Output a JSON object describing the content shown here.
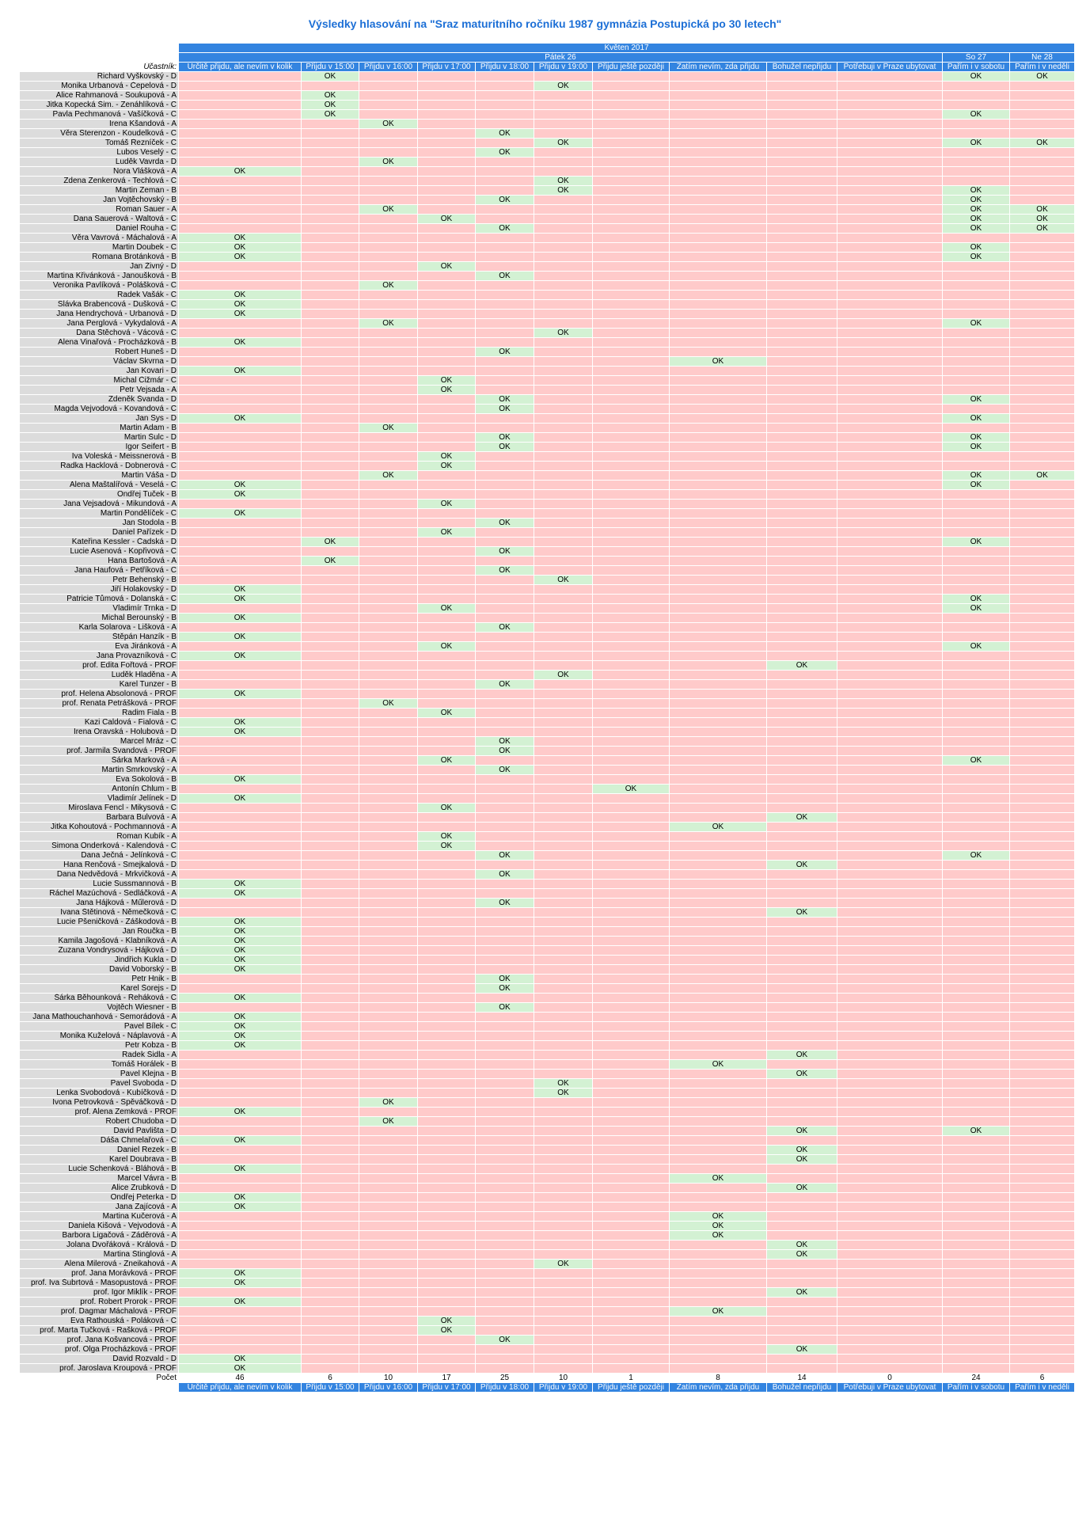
{
  "title": "Výsledky hlasování na \"Sraz maturitního ročníku 1987 gymnázia Postupická po 30 letech\"",
  "month": "Květen 2017",
  "days": [
    {
      "label": "Pátek 26",
      "span": 10
    },
    {
      "label": "So 27",
      "span": 1
    },
    {
      "label": "Ne 28",
      "span": 1
    }
  ],
  "participant_label": "Účastník:",
  "count_label": "Počet",
  "ok_label": "OK",
  "colors": {
    "header": "#3384e0",
    "no": "#ffcaca",
    "yes": "#d3f1d3",
    "name": "#dcdcdc",
    "title": "#1c6fd6"
  },
  "columns": [
    "Určitě přijdu, ale nevím v kolik",
    "Přijdu v 15:00",
    "Přijdu v 16:00",
    "Přijdu v 17:00",
    "Přijdu v 18:00",
    "Přijdu v 19:00",
    "Přijdu ještě později",
    "Zatím nevím, zda přijdu",
    "Bohužel nepřijdu",
    "Potřebuji v Praze ubytovat",
    "Pařím i v sobotu",
    "Pařím i v neděli"
  ],
  "counts": [
    "46",
    "6",
    "10",
    "17",
    "25",
    "10",
    "1",
    "8",
    "14",
    "0",
    "24",
    "6"
  ],
  "rows": [
    {
      "name": "Richard Vyškovský - D",
      "ok": [
        1,
        10,
        11
      ]
    },
    {
      "name": "Monika Urbanová - Čepelová - D",
      "ok": [
        5
      ]
    },
    {
      "name": "Alice Rahmanová - Soukupová - A",
      "ok": [
        1
      ]
    },
    {
      "name": "Jitka Kopecká Šim. - Zenáhlíková - C",
      "ok": [
        1
      ]
    },
    {
      "name": "Pavla Pechmanová - Vašíčková - C",
      "ok": [
        1,
        10
      ]
    },
    {
      "name": "Irena Kšandová - A",
      "ok": [
        2
      ]
    },
    {
      "name": "Věra Sterenzon - Koudelková - C",
      "ok": [
        4
      ]
    },
    {
      "name": "Tomáš Řezníček - C",
      "ok": [
        5,
        10,
        11
      ]
    },
    {
      "name": "Lubos Veselý - C",
      "ok": [
        4
      ]
    },
    {
      "name": "Luděk Vavrda - D",
      "ok": [
        2
      ]
    },
    {
      "name": "Nora Vlášková - A",
      "ok": [
        0
      ]
    },
    {
      "name": "Zdena Zenkerová - Techlová - C",
      "ok": [
        5
      ]
    },
    {
      "name": "Martin Zeman - B",
      "ok": [
        5,
        10
      ]
    },
    {
      "name": "Jan Vojtěchovský - B",
      "ok": [
        4,
        10
      ]
    },
    {
      "name": "Roman Sauer - A",
      "ok": [
        2,
        10,
        11
      ]
    },
    {
      "name": "Dana Sauerová - Waltová - C",
      "ok": [
        3,
        10,
        11
      ]
    },
    {
      "name": "Daniel Rouha - C",
      "ok": [
        4,
        10,
        11
      ]
    },
    {
      "name": "Věra Vavrová - Máchalová - A",
      "ok": [
        0
      ]
    },
    {
      "name": "Martin Doubek - C",
      "ok": [
        0,
        10
      ]
    },
    {
      "name": "Romana Brotánková - B",
      "ok": [
        0,
        10
      ]
    },
    {
      "name": "Jan Živný - D",
      "ok": [
        3
      ]
    },
    {
      "name": "Martina Křivánková - Janoušková - B",
      "ok": [
        4
      ]
    },
    {
      "name": "Veronika Pavlíková - Polášková - C",
      "ok": [
        2
      ]
    },
    {
      "name": "Radek Vašák - C",
      "ok": [
        0
      ]
    },
    {
      "name": "Slávka Brabencová - Dušková - C",
      "ok": [
        0
      ]
    },
    {
      "name": "Jana Hendrychová - Urbanová - D",
      "ok": [
        0
      ]
    },
    {
      "name": "Jana Perglová - Vykydalová - A",
      "ok": [
        2,
        10
      ]
    },
    {
      "name": "Dana Štěchová - Vácová - C",
      "ok": [
        5
      ]
    },
    {
      "name": "Alena Vinařová  - Procházková - B",
      "ok": [
        0
      ]
    },
    {
      "name": "Robert Huneš - D",
      "ok": [
        4
      ]
    },
    {
      "name": "Václav Skvrna - D",
      "ok": [
        7
      ]
    },
    {
      "name": "Jan Kovari - D",
      "ok": [
        0
      ]
    },
    {
      "name": "Michal Čižmár - C",
      "ok": [
        3
      ]
    },
    {
      "name": "Petr Vejsada - A",
      "ok": [
        3
      ]
    },
    {
      "name": "Zdeněk Švanda - D",
      "ok": [
        4,
        10
      ]
    },
    {
      "name": "Magda Vejvodová - Kovandová - C",
      "ok": [
        4
      ]
    },
    {
      "name": "Jan Sys - D",
      "ok": [
        0,
        10
      ]
    },
    {
      "name": "Martin Adam - B",
      "ok": [
        2
      ]
    },
    {
      "name": "Martin Šulc - D",
      "ok": [
        4,
        10
      ]
    },
    {
      "name": "Igor Seifert - B",
      "ok": [
        4,
        10
      ]
    },
    {
      "name": "Iva Voleská - Meissnerová - B",
      "ok": [
        3
      ]
    },
    {
      "name": "Radka Hacklová - Dobnerová - C",
      "ok": [
        3
      ]
    },
    {
      "name": "Martin Váša - D",
      "ok": [
        2,
        10,
        11
      ]
    },
    {
      "name": "Alena Maštalířová - Veselá - C",
      "ok": [
        0,
        10
      ]
    },
    {
      "name": "Ondřej Tuček - B",
      "ok": [
        0
      ]
    },
    {
      "name": "Jana Vejsadová - Mikundová - A",
      "ok": [
        3
      ]
    },
    {
      "name": "Martin Pondělíček - C",
      "ok": [
        0
      ]
    },
    {
      "name": "Jan Stodola - B",
      "ok": [
        4
      ]
    },
    {
      "name": "Daniel Pařízek - D",
      "ok": [
        3
      ]
    },
    {
      "name": "Kateřina Kessler - Čadská - D",
      "ok": [
        1,
        10
      ]
    },
    {
      "name": "Lucie Asenová - Kopřivová - C",
      "ok": [
        4
      ]
    },
    {
      "name": "Hana Bartošová - A",
      "ok": [
        1
      ]
    },
    {
      "name": "Jana Haufová - Petříková - C",
      "ok": [
        4
      ]
    },
    {
      "name": "Petr Behenský - B",
      "ok": [
        5
      ]
    },
    {
      "name": "Jiří Holakovský - D",
      "ok": [
        0
      ]
    },
    {
      "name": "Patricie Tůmová - Dolanská - C",
      "ok": [
        0,
        10
      ]
    },
    {
      "name": "Vladimír Trnka - D",
      "ok": [
        3,
        10
      ]
    },
    {
      "name": "Michal Berounský - B",
      "ok": [
        0
      ]
    },
    {
      "name": "Karla Solarova - Lišková - A",
      "ok": [
        4
      ]
    },
    {
      "name": "Štěpán Hanzík - B",
      "ok": [
        0
      ]
    },
    {
      "name": "Eva Jiránková - A",
      "ok": [
        3,
        10
      ]
    },
    {
      "name": "Jana Provazníková - C",
      "ok": [
        0
      ]
    },
    {
      "name": "prof. Edita Fořtová - PROF",
      "ok": [
        8
      ]
    },
    {
      "name": "Luděk Hladěna - A",
      "ok": [
        5
      ]
    },
    {
      "name": "Karel Tunzer - B",
      "ok": [
        4
      ]
    },
    {
      "name": "prof. Helena Absolonová - PROF",
      "ok": [
        0
      ]
    },
    {
      "name": "prof. Renata Petrášková - PROF",
      "ok": [
        2
      ]
    },
    {
      "name": "Radim Fiala - B",
      "ok": [
        3
      ]
    },
    {
      "name": "Kazi Caldová - Fialová - C",
      "ok": [
        0
      ]
    },
    {
      "name": "Irena Oravská - Holubová - D",
      "ok": [
        0
      ]
    },
    {
      "name": "Marcel Mráz - C",
      "ok": [
        4
      ]
    },
    {
      "name": "prof. Jarmila Švandová - PROF",
      "ok": [
        4
      ]
    },
    {
      "name": "Šárka Marková - A",
      "ok": [
        3,
        10
      ]
    },
    {
      "name": "Martin Smrkovský - A",
      "ok": [
        4
      ]
    },
    {
      "name": "Eva Sokolová - B",
      "ok": [
        0
      ]
    },
    {
      "name": "Antonín Chlum - B",
      "ok": [
        6
      ]
    },
    {
      "name": "Vladimír Jelínek - D",
      "ok": [
        0
      ]
    },
    {
      "name": "Miroslava Fencl - Mikysová - C",
      "ok": [
        3
      ]
    },
    {
      "name": "Barbara Bulvová - A",
      "ok": [
        8
      ]
    },
    {
      "name": "Jitka Kohoutová - Pochmannová - A",
      "ok": [
        7
      ]
    },
    {
      "name": "Roman Kubík - A",
      "ok": [
        3
      ]
    },
    {
      "name": "Simona Onderková - Kalendová - C",
      "ok": [
        3
      ]
    },
    {
      "name": "Dana Ječná - Jelínková - C",
      "ok": [
        4,
        10
      ]
    },
    {
      "name": "Hana Renčová - Smejkalová - D",
      "ok": [
        8
      ]
    },
    {
      "name": "Dana Nedvědová - Mrkvičková - A",
      "ok": [
        4
      ]
    },
    {
      "name": "Lucie Sussmannová - B",
      "ok": [
        0
      ]
    },
    {
      "name": "Ráchel Mazúchová - Sedláčková - A",
      "ok": [
        0
      ]
    },
    {
      "name": "Jana Hájková - Műlerová - D",
      "ok": [
        4
      ]
    },
    {
      "name": "Ivana Štětinová - Němečková - C",
      "ok": [
        8
      ]
    },
    {
      "name": "Lucie Pšeničková - Záškodová - B",
      "ok": [
        0
      ]
    },
    {
      "name": "Jan Roučka - B",
      "ok": [
        0
      ]
    },
    {
      "name": "Kamila Jagošová - Klabníková - A",
      "ok": [
        0
      ]
    },
    {
      "name": "Zuzana Vondrysová - Hájková - D",
      "ok": [
        0
      ]
    },
    {
      "name": "Jindřich Kukla - D",
      "ok": [
        0
      ]
    },
    {
      "name": "David Voborský - B",
      "ok": [
        0
      ]
    },
    {
      "name": "Petr Hnik - B",
      "ok": [
        4
      ]
    },
    {
      "name": "Karel Šorejs - D",
      "ok": [
        4
      ]
    },
    {
      "name": "Šárka Běhounková - Řeháková - C",
      "ok": [
        0
      ]
    },
    {
      "name": "Vojtěch Wiesner - B",
      "ok": [
        4
      ]
    },
    {
      "name": "Jana Mathouchanhová - Semorádová - A",
      "ok": [
        0
      ]
    },
    {
      "name": "Pavel Bílek - C",
      "ok": [
        0
      ]
    },
    {
      "name": "Monika Kuželová - Náplavová - A",
      "ok": [
        0
      ]
    },
    {
      "name": "Petr Kobza - B",
      "ok": [
        0
      ]
    },
    {
      "name": "Radek Šidla - A",
      "ok": [
        8
      ]
    },
    {
      "name": "Tomáš Horálek - B",
      "ok": [
        7
      ]
    },
    {
      "name": "Pavel Klejna - B",
      "ok": [
        8
      ]
    },
    {
      "name": "Pavel Svoboda - D",
      "ok": [
        5
      ]
    },
    {
      "name": "Lenka Svobodová - Kubíčková - D",
      "ok": [
        5
      ]
    },
    {
      "name": "Ivona Petrovková - Spěváčková - D",
      "ok": [
        2
      ]
    },
    {
      "name": "prof. Alena Zemková - PROF",
      "ok": [
        0
      ]
    },
    {
      "name": "Robert Chudoba - D",
      "ok": [
        2
      ]
    },
    {
      "name": "David Pavlišta - D",
      "ok": [
        8,
        10
      ]
    },
    {
      "name": "Dáša Chmelařová - C",
      "ok": [
        0
      ]
    },
    {
      "name": "Daniel Rezek - B",
      "ok": [
        8
      ]
    },
    {
      "name": "Karel Doubrava - B",
      "ok": [
        8
      ]
    },
    {
      "name": "Lucie Schenková - Bláhová - B",
      "ok": [
        0
      ]
    },
    {
      "name": "Marcel Vávra - B",
      "ok": [
        7
      ]
    },
    {
      "name": "Alice Zrubková - D",
      "ok": [
        8
      ]
    },
    {
      "name": "Ondřej Peterka - D",
      "ok": [
        0
      ]
    },
    {
      "name": "Jana Zajícová - A",
      "ok": [
        0
      ]
    },
    {
      "name": "Martina Kučerová - A",
      "ok": [
        7
      ]
    },
    {
      "name": "Daniela Kišová - Vejvodová - A",
      "ok": [
        7
      ]
    },
    {
      "name": "Barbora Ligačová - Záděrová - A",
      "ok": [
        7
      ]
    },
    {
      "name": "Jolana Dvořáková - Králová - D",
      "ok": [
        8
      ]
    },
    {
      "name": "Martina Štinglová - A",
      "ok": [
        8
      ]
    },
    {
      "name": "Alena Milerová - Zneikahová - A",
      "ok": [
        5
      ]
    },
    {
      "name": "prof. Jana Morávková - PROF",
      "ok": [
        0
      ]
    },
    {
      "name": "prof. Iva Šubrtová - Masopustová - PROF",
      "ok": [
        0
      ]
    },
    {
      "name": "prof. Igor Miklík - PROF",
      "ok": [
        8
      ]
    },
    {
      "name": "prof. Robert Prorok - PROF",
      "ok": [
        0
      ]
    },
    {
      "name": "prof. Dagmar Máchalová - PROF",
      "ok": [
        7
      ]
    },
    {
      "name": "Eva Rathouská - Poláková - C",
      "ok": [
        3
      ]
    },
    {
      "name": "prof. Marta Tučková - Rašková - PROF",
      "ok": [
        3
      ]
    },
    {
      "name": "prof. Jana Košvancová - PROF",
      "ok": [
        4
      ]
    },
    {
      "name": "prof. Olga Procházková - PROF",
      "ok": [
        8
      ]
    },
    {
      "name": "David Rozvald - D",
      "ok": [
        0
      ]
    },
    {
      "name": "prof. Jaroslava Kroupová - PROF",
      "ok": [
        0
      ]
    }
  ]
}
